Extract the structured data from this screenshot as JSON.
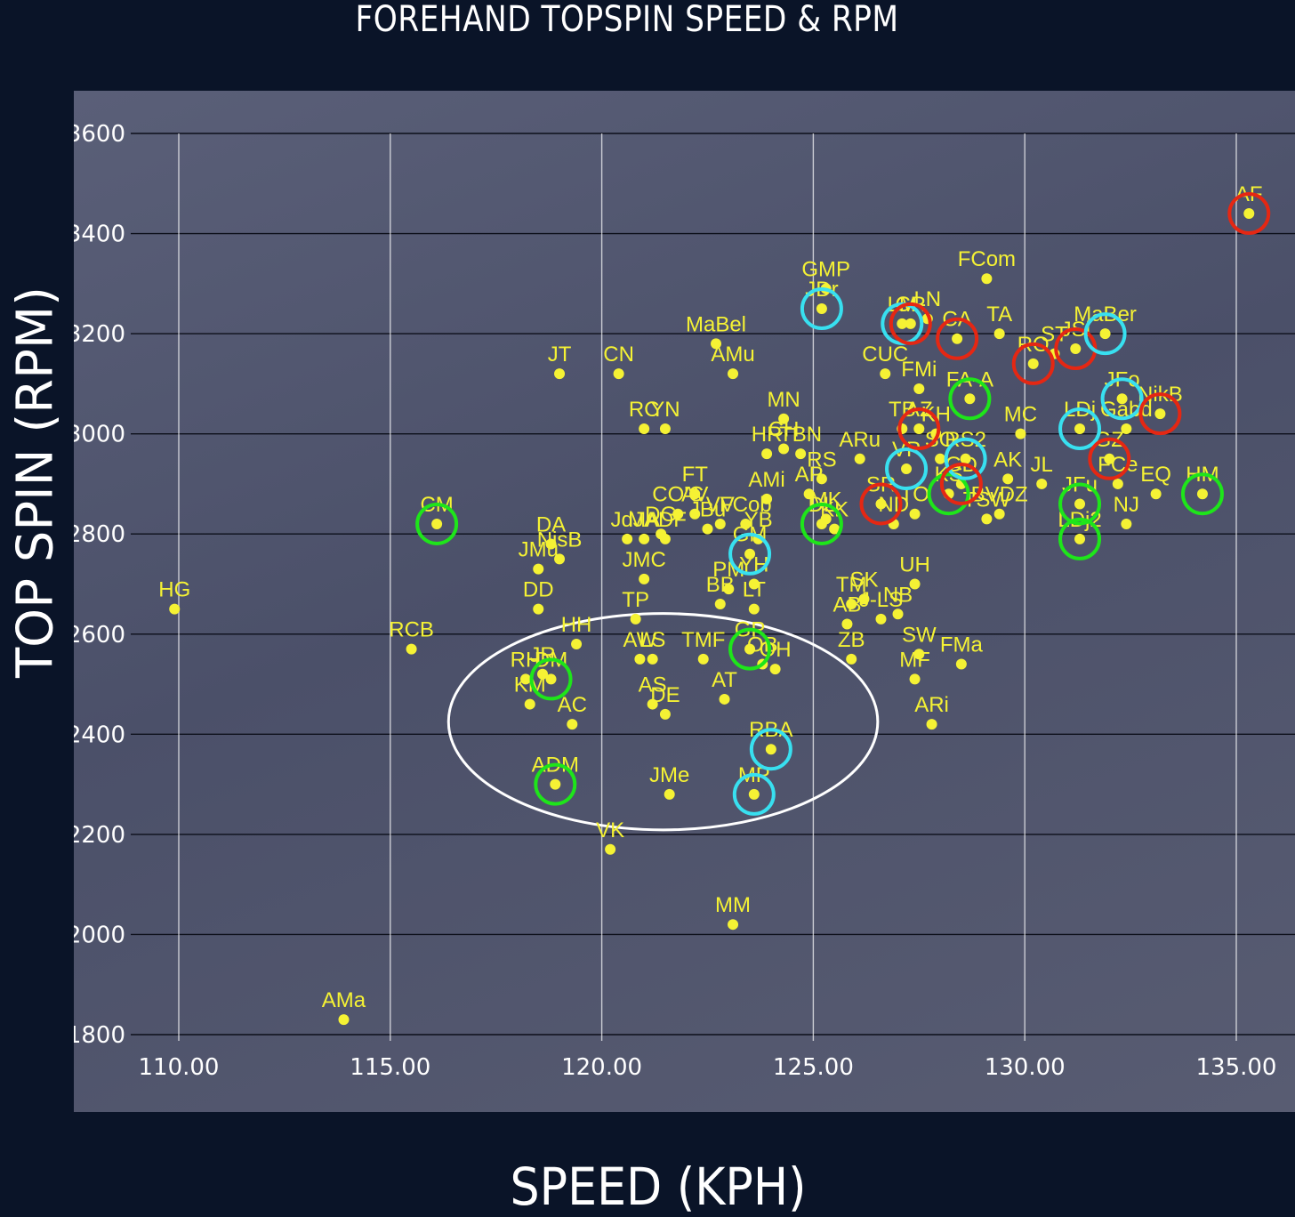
{
  "chart_data": {
    "type": "scatter",
    "title": "FOREHAND TOPSPIN SPEED & RPM",
    "xlabel": "SPEED (KPH)",
    "ylabel": "TOP SPIN (RPM)",
    "xlim": [
      108.4,
      137.3
    ],
    "ylim": [
      1780,
      3690
    ],
    "x_ticks": [
      "110.00",
      "115.00",
      "120.00",
      "125.00",
      "130.00",
      "135.00"
    ],
    "y_ticks": [
      "1800",
      "2000",
      "2200",
      "2400",
      "2600",
      "2800",
      "3000",
      "3200",
      "3400",
      "3600"
    ],
    "grid": true,
    "point_color": "#f5f234",
    "circle_colors": {
      "red": "#e52713",
      "cyan": "#38e0f0",
      "green": "#1ee51a",
      "white": "#ffffff"
    },
    "points": [
      {
        "label": "AF",
        "x": 135.3,
        "y": 3440,
        "circle": "red"
      },
      {
        "label": "HG",
        "x": 109.9,
        "y": 2650
      },
      {
        "label": "CM",
        "x": 116.1,
        "y": 2820,
        "circle": "green"
      },
      {
        "label": "RCB",
        "x": 115.5,
        "y": 2570
      },
      {
        "label": "AMa",
        "x": 113.9,
        "y": 1830
      },
      {
        "label": "DA",
        "x": 118.8,
        "y": 2780
      },
      {
        "label": "NisB",
        "x": 119.0,
        "y": 2750
      },
      {
        "label": "JMu",
        "x": 118.5,
        "y": 2730
      },
      {
        "label": "DD",
        "x": 118.5,
        "y": 2650
      },
      {
        "label": "HH",
        "x": 119.4,
        "y": 2580
      },
      {
        "label": "RH",
        "x": 118.2,
        "y": 2510
      },
      {
        "label": "JR",
        "x": 118.6,
        "y": 2520
      },
      {
        "label": "DM",
        "x": 118.8,
        "y": 2510,
        "circle": "green"
      },
      {
        "label": "KM",
        "x": 118.3,
        "y": 2460
      },
      {
        "label": "AC",
        "x": 119.3,
        "y": 2420
      },
      {
        "label": "ADM",
        "x": 118.9,
        "y": 2300,
        "circle": "green"
      },
      {
        "label": "VK",
        "x": 120.2,
        "y": 2170
      },
      {
        "label": "JMe",
        "x": 121.6,
        "y": 2280
      },
      {
        "label": "AS",
        "x": 121.2,
        "y": 2460
      },
      {
        "label": "DE",
        "x": 121.5,
        "y": 2440
      },
      {
        "label": "AW",
        "x": 120.9,
        "y": 2550
      },
      {
        "label": "LS",
        "x": 121.2,
        "y": 2550
      },
      {
        "label": "TP",
        "x": 120.8,
        "y": 2630
      },
      {
        "label": "JMC",
        "x": 121.0,
        "y": 2710
      },
      {
        "label": "JdJ",
        "x": 120.6,
        "y": 2790
      },
      {
        "label": "MA",
        "x": 121.0,
        "y": 2790
      },
      {
        "label": "ADF",
        "x": 121.5,
        "y": 2790
      },
      {
        "label": "DG",
        "x": 121.4,
        "y": 2800
      },
      {
        "label": "CO'C",
        "x": 121.8,
        "y": 2840
      },
      {
        "label": "JT",
        "x": 119.0,
        "y": 3120
      },
      {
        "label": "CN",
        "x": 120.4,
        "y": 3120
      },
      {
        "label": "RC",
        "x": 121.0,
        "y": 3010
      },
      {
        "label": "YN",
        "x": 121.5,
        "y": 3010
      },
      {
        "label": "MaBel",
        "x": 122.7,
        "y": 3180
      },
      {
        "label": "AMu",
        "x": 123.1,
        "y": 3120
      },
      {
        "label": "FT",
        "x": 122.2,
        "y": 2880
      },
      {
        "label": "AV",
        "x": 122.2,
        "y": 2840
      },
      {
        "label": "JBu",
        "x": 122.5,
        "y": 2810
      },
      {
        "label": "VV",
        "x": 122.8,
        "y": 2820
      },
      {
        "label": "FCob",
        "x": 123.4,
        "y": 2820
      },
      {
        "label": "AMi",
        "x": 123.9,
        "y": 2870
      },
      {
        "label": "YB",
        "x": 123.7,
        "y": 2790
      },
      {
        "label": "GM",
        "x": 123.5,
        "y": 2760,
        "circle": "cyan"
      },
      {
        "label": "YH",
        "x": 123.6,
        "y": 2700
      },
      {
        "label": "PM",
        "x": 123.0,
        "y": 2690
      },
      {
        "label": "BB",
        "x": 122.8,
        "y": 2660
      },
      {
        "label": "LT",
        "x": 123.6,
        "y": 2650
      },
      {
        "label": "TMF",
        "x": 122.4,
        "y": 2550
      },
      {
        "label": "GP",
        "x": 123.5,
        "y": 2570,
        "circle": "green"
      },
      {
        "label": "OB",
        "x": 123.8,
        "y": 2540
      },
      {
        "label": "OH",
        "x": 124.1,
        "y": 2530
      },
      {
        "label": "AT",
        "x": 122.9,
        "y": 2470
      },
      {
        "label": "RBA",
        "x": 124.0,
        "y": 2370,
        "circle": "cyan"
      },
      {
        "label": "MP",
        "x": 123.6,
        "y": 2280,
        "circle": "cyan"
      },
      {
        "label": "MM",
        "x": 123.1,
        "y": 2020
      },
      {
        "label": "HR",
        "x": 123.9,
        "y": 2960
      },
      {
        "label": "CH",
        "x": 124.3,
        "y": 2970
      },
      {
        "label": "TBN",
        "x": 124.7,
        "y": 2960
      },
      {
        "label": "MN",
        "x": 124.3,
        "y": 3030
      },
      {
        "label": "AP",
        "x": 124.9,
        "y": 2880
      },
      {
        "label": "RS",
        "x": 125.2,
        "y": 2910
      },
      {
        "label": "MK",
        "x": 125.3,
        "y": 2830
      },
      {
        "label": "KK",
        "x": 125.5,
        "y": 2810
      },
      {
        "label": "DL",
        "x": 125.2,
        "y": 2820,
        "circle": "green"
      },
      {
        "label": "GMP",
        "x": 125.3,
        "y": 3290
      },
      {
        "label": "JDr",
        "x": 125.2,
        "y": 3250,
        "circle": "cyan"
      },
      {
        "label": "TM",
        "x": 125.9,
        "y": 2660
      },
      {
        "label": "SK",
        "x": 126.2,
        "y": 2670
      },
      {
        "label": "AB",
        "x": 125.8,
        "y": 2620
      },
      {
        "label": "ZB",
        "x": 125.9,
        "y": 2550
      },
      {
        "label": "J-LS",
        "x": 126.6,
        "y": 2630
      },
      {
        "label": "NB",
        "x": 127.0,
        "y": 2640
      },
      {
        "label": "UH",
        "x": 127.4,
        "y": 2700
      },
      {
        "label": "SW",
        "x": 127.5,
        "y": 2560
      },
      {
        "label": "FMa",
        "x": 128.5,
        "y": 2540
      },
      {
        "label": "MF",
        "x": 127.4,
        "y": 2510
      },
      {
        "label": "ARi",
        "x": 127.8,
        "y": 2420
      },
      {
        "label": "ARu",
        "x": 126.1,
        "y": 2950
      },
      {
        "label": "SR",
        "x": 126.6,
        "y": 2860,
        "circle": "red"
      },
      {
        "label": "ND",
        "x": 126.9,
        "y": 2820
      },
      {
        "label": "TO",
        "x": 127.4,
        "y": 2840
      },
      {
        "label": "VP",
        "x": 127.2,
        "y": 2930,
        "circle": "cyan"
      },
      {
        "label": "CUC",
        "x": 126.7,
        "y": 3120
      },
      {
        "label": "LM",
        "x": 127.1,
        "y": 3220,
        "circle": "cyan"
      },
      {
        "label": "CR",
        "x": 127.3,
        "y": 3220,
        "circle": "red"
      },
      {
        "label": "LN",
        "x": 127.7,
        "y": 3230
      },
      {
        "label": "FMi",
        "x": 127.5,
        "y": 3090
      },
      {
        "label": "TB",
        "x": 127.1,
        "y": 3010
      },
      {
        "label": "AZ",
        "x": 127.5,
        "y": 3010,
        "circle": "red"
      },
      {
        "label": "KH",
        "x": 127.9,
        "y": 3000
      },
      {
        "label": "SO",
        "x": 128.0,
        "y": 2950
      },
      {
        "label": "KS",
        "x": 128.2,
        "y": 2880,
        "circle": "green"
      },
      {
        "label": "FA-A",
        "x": 128.7,
        "y": 3070,
        "circle": "green"
      },
      {
        "label": "RS2",
        "x": 128.6,
        "y": 2950,
        "circle": "cyan"
      },
      {
        "label": "GD",
        "x": 128.5,
        "y": 2900,
        "circle": "red"
      },
      {
        "label": "FCom",
        "x": 129.1,
        "y": 3310
      },
      {
        "label": "CA",
        "x": 128.4,
        "y": 3190,
        "circle": "red"
      },
      {
        "label": "TA",
        "x": 129.4,
        "y": 3200
      },
      {
        "label": "MC",
        "x": 129.9,
        "y": 3000
      },
      {
        "label": "AK",
        "x": 129.6,
        "y": 2910
      },
      {
        "label": "BVDZ",
        "x": 129.4,
        "y": 2840
      },
      {
        "label": "TSW",
        "x": 129.1,
        "y": 2830
      },
      {
        "label": "RO",
        "x": 130.2,
        "y": 3140,
        "circle": "red"
      },
      {
        "label": "ST",
        "x": 130.7,
        "y": 3160
      },
      {
        "label": "JSi",
        "x": 131.2,
        "y": 3170,
        "circle": "red"
      },
      {
        "label": "JL",
        "x": 130.4,
        "y": 2900
      },
      {
        "label": "LDj",
        "x": 131.3,
        "y": 3010,
        "circle": "cyan"
      },
      {
        "label": "JFu",
        "x": 131.3,
        "y": 2860,
        "circle": "green"
      },
      {
        "label": "LDj2",
        "x": 131.3,
        "y": 2790,
        "circle": "green"
      },
      {
        "label": "MaBer",
        "x": 131.9,
        "y": 3200,
        "circle": "cyan"
      },
      {
        "label": "GZ",
        "x": 132.0,
        "y": 2950,
        "circle": "red"
      },
      {
        "label": "JFo",
        "x": 132.3,
        "y": 3070,
        "circle": "cyan"
      },
      {
        "label": "Gabd",
        "x": 132.4,
        "y": 3010
      },
      {
        "label": "FCe",
        "x": 132.2,
        "y": 2900
      },
      {
        "label": "NJ",
        "x": 132.4,
        "y": 2820
      },
      {
        "label": "NikB",
        "x": 133.2,
        "y": 3040,
        "circle": "red"
      },
      {
        "label": "EQ",
        "x": 133.1,
        "y": 2880
      },
      {
        "label": "HM",
        "x": 134.2,
        "y": 2880,
        "circle": "green"
      }
    ],
    "highlight_ellipse_around": [
      "ADM",
      "JMe",
      "AS",
      "DE",
      "RBA",
      "MP",
      "AW",
      "LS",
      "GP"
    ]
  }
}
